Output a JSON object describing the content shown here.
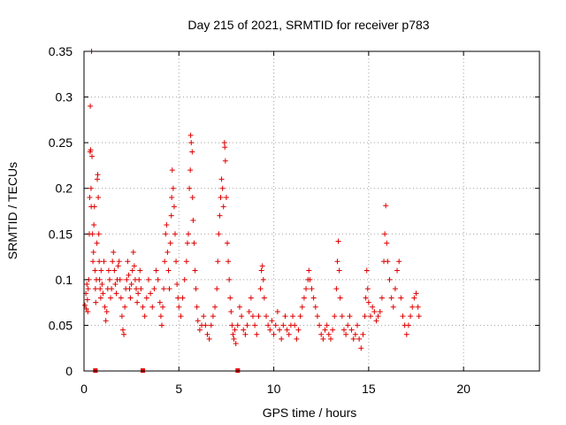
{
  "chart_data": {
    "type": "scatter",
    "title": "Day 215 of 2021, SRMTID for receiver p783",
    "xlabel": "GPS time / hours",
    "ylabel": "SRMTID / TECUs",
    "xlim": [
      0,
      24
    ],
    "ylim": [
      0,
      0.35
    ],
    "x_ticks": [
      0,
      5,
      10,
      15,
      20
    ],
    "x_tick_labels": [
      "0",
      "5",
      "10",
      "15",
      "20"
    ],
    "y_ticks": [
      0,
      0.05,
      0.1,
      0.15,
      0.2,
      0.25,
      0.3,
      0.35
    ],
    "y_tick_labels": [
      "0",
      "0.05",
      "0.1",
      "0.15",
      "0.2",
      "0.25",
      "0.3",
      "0.35"
    ],
    "grid": true,
    "marker": "+",
    "color": "#e00000",
    "series": [
      {
        "name": "SRMTID",
        "points": [
          [
            0.05,
            0.072
          ],
          [
            0.1,
            0.085
          ],
          [
            0.12,
            0.068
          ],
          [
            0.15,
            0.095
          ],
          [
            0.18,
            0.078
          ],
          [
            0.2,
            0.065
          ],
          [
            0.22,
            0.09
          ],
          [
            0.25,
            0.1
          ],
          [
            0.28,
            0.15
          ],
          [
            0.3,
            0.19
          ],
          [
            0.32,
            0.24
          ],
          [
            0.33,
            0.29
          ],
          [
            0.35,
            0.242
          ],
          [
            0.37,
            0.2
          ],
          [
            0.38,
            0.18
          ],
          [
            0.4,
            0.35
          ],
          [
            0.42,
            0.235
          ],
          [
            0.45,
            0.15
          ],
          [
            0.47,
            0.12
          ],
          [
            0.5,
            0.13
          ],
          [
            0.52,
            0.16
          ],
          [
            0.55,
            0.18
          ],
          [
            0.58,
            0.11
          ],
          [
            0.6,
            0.09
          ],
          [
            0.62,
            0.075
          ],
          [
            0.65,
            0.1
          ],
          [
            0.68,
            0.14
          ],
          [
            0.7,
            0.21
          ],
          [
            0.72,
            0.215
          ],
          [
            0.75,
            0.19
          ],
          [
            0.78,
            0.15
          ],
          [
            0.8,
            0.12
          ],
          [
            0.82,
            0.1
          ],
          [
            0.85,
            0.09
          ],
          [
            0.88,
            0.08
          ],
          [
            0.9,
            0.11
          ],
          [
            0.95,
            0.095
          ],
          [
            1.0,
            0.085
          ],
          [
            1.05,
            0.12
          ],
          [
            1.1,
            0.07
          ],
          [
            1.15,
            0.055
          ],
          [
            1.2,
            0.065
          ],
          [
            1.25,
            0.09
          ],
          [
            1.3,
            0.11
          ],
          [
            1.35,
            0.1
          ],
          [
            1.4,
            0.08
          ],
          [
            1.45,
            0.09
          ],
          [
            1.5,
            0.12
          ],
          [
            1.55,
            0.13
          ],
          [
            1.6,
            0.11
          ],
          [
            1.65,
            0.095
          ],
          [
            1.7,
            0.085
          ],
          [
            1.75,
            0.1
          ],
          [
            1.8,
            0.115
          ],
          [
            1.85,
            0.12
          ],
          [
            1.9,
            0.1
          ],
          [
            1.95,
            0.08
          ],
          [
            2.0,
            0.06
          ],
          [
            2.05,
            0.045
          ],
          [
            2.1,
            0.04
          ],
          [
            2.15,
            0.07
          ],
          [
            2.2,
            0.09
          ],
          [
            2.25,
            0.1
          ],
          [
            2.3,
            0.12
          ],
          [
            2.35,
            0.105
          ],
          [
            2.4,
            0.09
          ],
          [
            2.45,
            0.08
          ],
          [
            2.5,
            0.095
          ],
          [
            2.55,
            0.11
          ],
          [
            2.6,
            0.13
          ],
          [
            2.65,
            0.115
          ],
          [
            2.7,
            0.1
          ],
          [
            2.75,
            0.09
          ],
          [
            2.8,
            0.075
          ],
          [
            2.85,
            0.085
          ],
          [
            2.9,
            0.1
          ],
          [
            2.95,
            0.11
          ],
          [
            3.0,
            0.09
          ],
          [
            3.1,
            0.07
          ],
          [
            3.2,
            0.06
          ],
          [
            3.3,
            0.08
          ],
          [
            3.4,
            0.1
          ],
          [
            3.5,
            0.085
          ],
          [
            3.6,
            0.07
          ],
          [
            3.7,
            0.09
          ],
          [
            3.8,
            0.11
          ],
          [
            3.9,
            0.1
          ],
          [
            4.0,
            0.075
          ],
          [
            4.05,
            0.06
          ],
          [
            4.1,
            0.05
          ],
          [
            4.15,
            0.07
          ],
          [
            4.2,
            0.09
          ],
          [
            4.25,
            0.12
          ],
          [
            4.3,
            0.15
          ],
          [
            4.35,
            0.16
          ],
          [
            4.4,
            0.13
          ],
          [
            4.45,
            0.11
          ],
          [
            4.5,
            0.09
          ],
          [
            4.55,
            0.14
          ],
          [
            4.6,
            0.17
          ],
          [
            4.62,
            0.19
          ],
          [
            4.65,
            0.22
          ],
          [
            4.7,
            0.2
          ],
          [
            4.75,
            0.18
          ],
          [
            4.8,
            0.15
          ],
          [
            4.85,
            0.12
          ],
          [
            4.9,
            0.095
          ],
          [
            4.95,
            0.08
          ],
          [
            5.0,
            0.07
          ],
          [
            5.1,
            0.06
          ],
          [
            5.2,
            0.08
          ],
          [
            5.3,
            0.1
          ],
          [
            5.4,
            0.12
          ],
          [
            5.45,
            0.14
          ],
          [
            5.5,
            0.15
          ],
          [
            5.55,
            0.2
          ],
          [
            5.6,
            0.22
          ],
          [
            5.62,
            0.258
          ],
          [
            5.65,
            0.25
          ],
          [
            5.7,
            0.24
          ],
          [
            5.72,
            0.19
          ],
          [
            5.75,
            0.165
          ],
          [
            5.8,
            0.14
          ],
          [
            5.85,
            0.11
          ],
          [
            5.9,
            0.09
          ],
          [
            5.95,
            0.07
          ],
          [
            6.0,
            0.055
          ],
          [
            6.1,
            0.045
          ],
          [
            6.2,
            0.05
          ],
          [
            6.3,
            0.06
          ],
          [
            6.4,
            0.05
          ],
          [
            6.5,
            0.04
          ],
          [
            6.6,
            0.035
          ],
          [
            6.7,
            0.05
          ],
          [
            6.8,
            0.06
          ],
          [
            6.9,
            0.07
          ],
          [
            7.0,
            0.09
          ],
          [
            7.05,
            0.12
          ],
          [
            7.1,
            0.15
          ],
          [
            7.15,
            0.17
          ],
          [
            7.2,
            0.19
          ],
          [
            7.25,
            0.21
          ],
          [
            7.3,
            0.2
          ],
          [
            7.35,
            0.18
          ],
          [
            7.4,
            0.25
          ],
          [
            7.42,
            0.245
          ],
          [
            7.45,
            0.23
          ],
          [
            7.5,
            0.19
          ],
          [
            7.55,
            0.14
          ],
          [
            7.6,
            0.12
          ],
          [
            7.65,
            0.1
          ],
          [
            7.7,
            0.08
          ],
          [
            7.75,
            0.065
          ],
          [
            7.8,
            0.05
          ],
          [
            7.85,
            0.04
          ],
          [
            7.9,
            0.035
          ],
          [
            7.95,
            0.045
          ],
          [
            8.0,
            0.03
          ],
          [
            8.1,
            0.05
          ],
          [
            8.2,
            0.07
          ],
          [
            8.3,
            0.06
          ],
          [
            8.4,
            0.045
          ],
          [
            8.5,
            0.04
          ],
          [
            8.6,
            0.05
          ],
          [
            8.7,
            0.065
          ],
          [
            8.8,
            0.08
          ],
          [
            8.9,
            0.06
          ],
          [
            9.0,
            0.05
          ],
          [
            9.1,
            0.04
          ],
          [
            9.2,
            0.06
          ],
          [
            9.3,
            0.09
          ],
          [
            9.35,
            0.11
          ],
          [
            9.4,
            0.115
          ],
          [
            9.45,
            0.1
          ],
          [
            9.5,
            0.08
          ],
          [
            9.6,
            0.06
          ],
          [
            9.7,
            0.05
          ],
          [
            9.8,
            0.045
          ],
          [
            9.9,
            0.055
          ],
          [
            10.0,
            0.04
          ],
          [
            10.1,
            0.05
          ],
          [
            10.2,
            0.065
          ],
          [
            10.3,
            0.045
          ],
          [
            10.4,
            0.035
          ],
          [
            10.5,
            0.05
          ],
          [
            10.6,
            0.06
          ],
          [
            10.7,
            0.045
          ],
          [
            10.8,
            0.04
          ],
          [
            10.9,
            0.05
          ],
          [
            11.0,
            0.06
          ],
          [
            11.1,
            0.05
          ],
          [
            11.2,
            0.035
          ],
          [
            11.3,
            0.045
          ],
          [
            11.4,
            0.06
          ],
          [
            11.5,
            0.07
          ],
          [
            11.6,
            0.08
          ],
          [
            11.7,
            0.09
          ],
          [
            11.8,
            0.1
          ],
          [
            11.85,
            0.11
          ],
          [
            11.9,
            0.1
          ],
          [
            12.0,
            0.09
          ],
          [
            12.1,
            0.08
          ],
          [
            12.2,
            0.07
          ],
          [
            12.3,
            0.06
          ],
          [
            12.4,
            0.05
          ],
          [
            12.5,
            0.04
          ],
          [
            12.6,
            0.035
          ],
          [
            12.7,
            0.045
          ],
          [
            12.8,
            0.05
          ],
          [
            12.9,
            0.04
          ],
          [
            13.0,
            0.035
          ],
          [
            13.1,
            0.045
          ],
          [
            13.2,
            0.06
          ],
          [
            13.3,
            0.09
          ],
          [
            13.35,
            0.12
          ],
          [
            13.4,
            0.142
          ],
          [
            13.45,
            0.11
          ],
          [
            13.5,
            0.08
          ],
          [
            13.6,
            0.06
          ],
          [
            13.7,
            0.045
          ],
          [
            13.8,
            0.04
          ],
          [
            13.9,
            0.05
          ],
          [
            14.0,
            0.06
          ],
          [
            14.1,
            0.045
          ],
          [
            14.2,
            0.035
          ],
          [
            14.3,
            0.04
          ],
          [
            14.4,
            0.05
          ],
          [
            14.5,
            0.035
          ],
          [
            14.6,
            0.025
          ],
          [
            14.7,
            0.04
          ],
          [
            14.8,
            0.06
          ],
          [
            14.85,
            0.08
          ],
          [
            14.9,
            0.11
          ],
          [
            14.95,
            0.09
          ],
          [
            15.0,
            0.075
          ],
          [
            15.1,
            0.06
          ],
          [
            15.2,
            0.07
          ],
          [
            15.3,
            0.065
          ],
          [
            15.4,
            0.055
          ],
          [
            15.5,
            0.06
          ],
          [
            15.6,
            0.065
          ],
          [
            15.7,
            0.08
          ],
          [
            15.8,
            0.12
          ],
          [
            15.85,
            0.15
          ],
          [
            15.9,
            0.181
          ],
          [
            15.95,
            0.14
          ],
          [
            16.0,
            0.12
          ],
          [
            16.1,
            0.1
          ],
          [
            16.2,
            0.08
          ],
          [
            16.3,
            0.07
          ],
          [
            16.4,
            0.09
          ],
          [
            16.5,
            0.11
          ],
          [
            16.6,
            0.12
          ],
          [
            16.7,
            0.08
          ],
          [
            16.8,
            0.06
          ],
          [
            16.9,
            0.05
          ],
          [
            17.0,
            0.04
          ],
          [
            17.1,
            0.05
          ],
          [
            17.2,
            0.06
          ],
          [
            17.3,
            0.07
          ],
          [
            17.4,
            0.08
          ],
          [
            17.5,
            0.085
          ],
          [
            17.6,
            0.07
          ],
          [
            17.65,
            0.06
          ]
        ]
      }
    ],
    "gap_markers_x": [
      0.6,
      3.1,
      8.1
    ]
  }
}
